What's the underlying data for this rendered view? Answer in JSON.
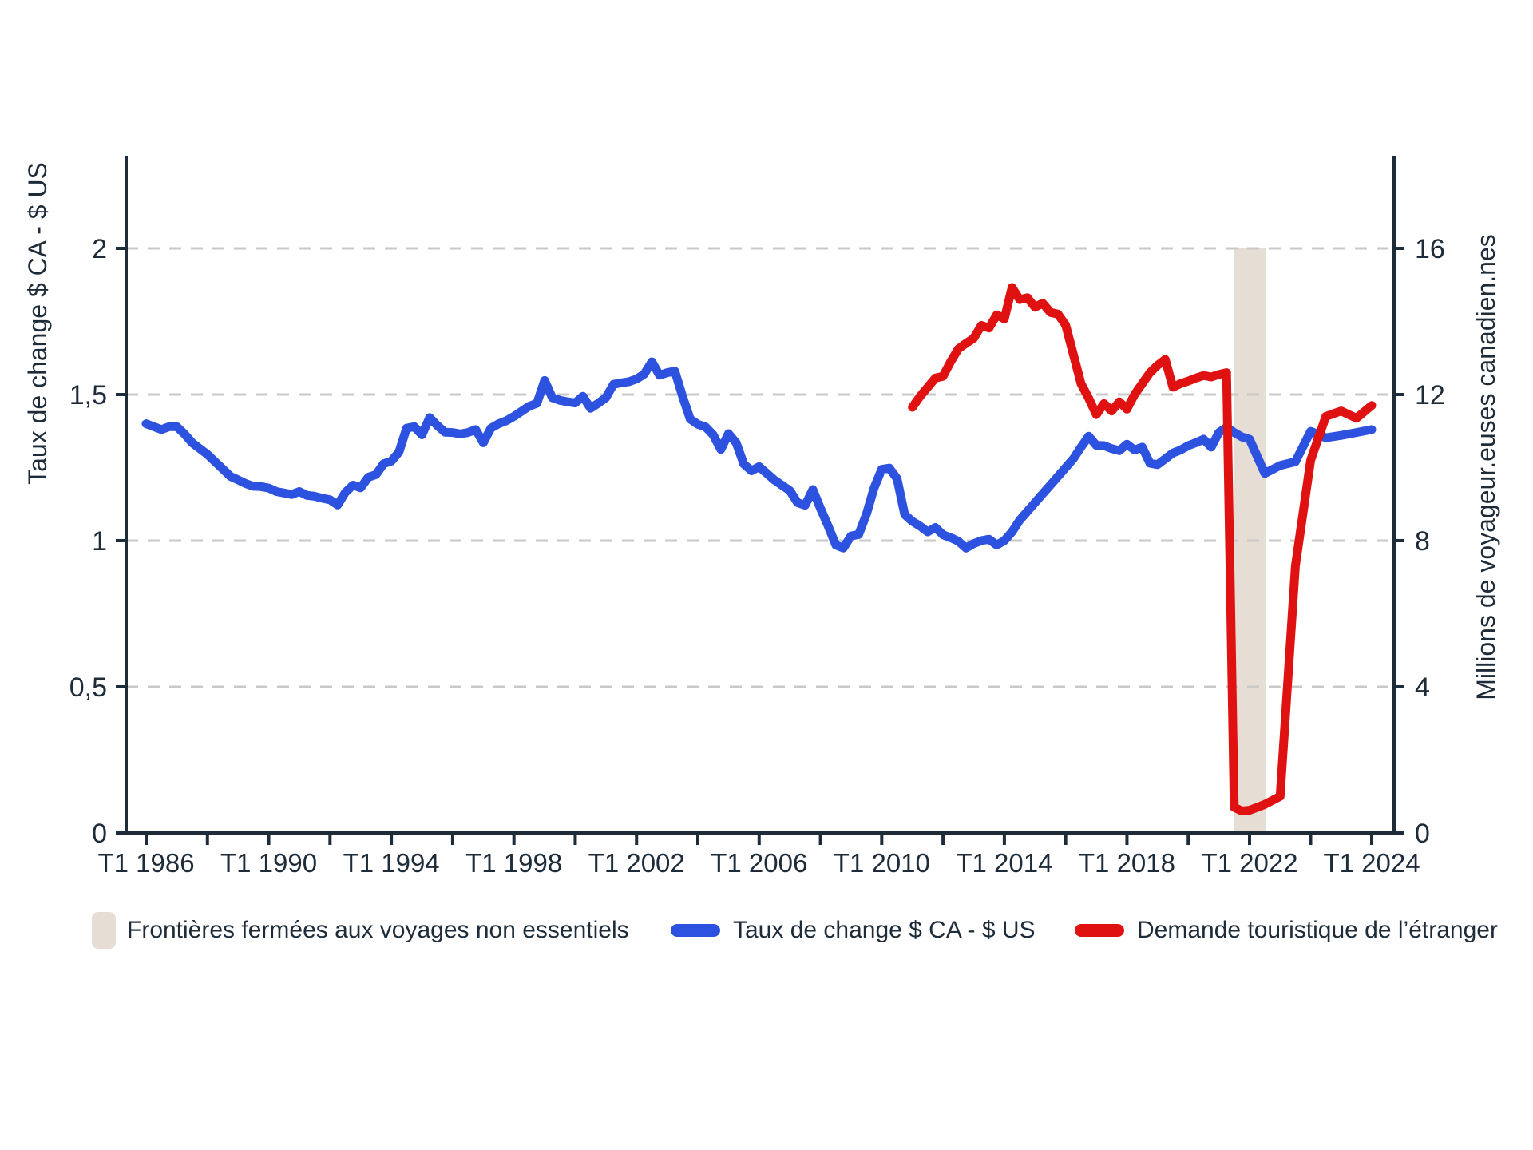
{
  "chart_data": {
    "type": "line",
    "title": "",
    "grid": "dashed-horizontal",
    "background": "#ffffff",
    "colors": {
      "exchange_rate_line": "#2e52e0",
      "tourism_demand_line": "#e01111",
      "closure_band": "#e6ddd5",
      "axis": "#1e2c3a",
      "gridline": "#c9c9c9"
    },
    "left_axis": {
      "label": "Taux de change $ CA - $ US",
      "tick_values": [
        0,
        0.5,
        1,
        1.5,
        2
      ],
      "tick_labels": [
        "0",
        "0,5",
        "1",
        "1,5",
        "2"
      ],
      "range_shown": [
        0,
        2.32
      ]
    },
    "right_axis": {
      "label": "Millions de voyageur.euses canadien.nes",
      "tick_values": [
        0,
        4,
        8,
        12,
        16
      ],
      "tick_labels": [
        "0",
        "4",
        "8",
        "12",
        "16"
      ],
      "range_shown": [
        0,
        18.5
      ]
    },
    "x_axis": {
      "tick_years": [
        1986,
        1988,
        1990,
        1992,
        1994,
        1996,
        1998,
        2000,
        2002,
        2004,
        2006,
        2008,
        2010,
        2012,
        2014,
        2016,
        2018,
        2020,
        2022,
        2023,
        2024
      ],
      "labels": [
        {
          "year": 1986,
          "text": "T1 1986"
        },
        {
          "year": 1990,
          "text": "T1 1990"
        },
        {
          "year": 1994,
          "text": "T1 1994"
        },
        {
          "year": 1998,
          "text": "T1 1998"
        },
        {
          "year": 2002,
          "text": "T1 2002"
        },
        {
          "year": 2006,
          "text": "T1 2006"
        },
        {
          "year": 2010,
          "text": "T1 2010"
        },
        {
          "year": 2014,
          "text": "T1 2014"
        },
        {
          "year": 2018,
          "text": "T1 2018"
        },
        {
          "year": 2022,
          "text": "T1 2022"
        },
        {
          "year": 2024,
          "text": "T1 2024"
        }
      ]
    },
    "band": {
      "name": "Frontières fermées aux voyages non essentiels",
      "x_from_year": 2021.48,
      "x_to_year": 2022.26,
      "top_value_right_axis": 16,
      "bottom_value_right_axis": 0
    },
    "series": [
      {
        "name": "Taux de change $ CA - $ US",
        "axis": "left",
        "color": "#2e52e0",
        "freq": "quarterly",
        "start_year": 1986,
        "start_quarter": "T1",
        "values": [
          1.4,
          1.39,
          1.38,
          1.39,
          1.39,
          1.365,
          1.335,
          1.315,
          1.295,
          1.27,
          1.245,
          1.22,
          1.208,
          1.195,
          1.186,
          1.185,
          1.18,
          1.168,
          1.163,
          1.158,
          1.168,
          1.155,
          1.152,
          1.145,
          1.14,
          1.122,
          1.165,
          1.19,
          1.181,
          1.217,
          1.226,
          1.263,
          1.272,
          1.303,
          1.385,
          1.39,
          1.362,
          1.421,
          1.394,
          1.371,
          1.37,
          1.365,
          1.37,
          1.38,
          1.335,
          1.385,
          1.4,
          1.41,
          1.425,
          1.443,
          1.46,
          1.47,
          1.548,
          1.489,
          1.48,
          1.475,
          1.471,
          1.494,
          1.453,
          1.47,
          1.489,
          1.535,
          1.54,
          1.544,
          1.553,
          1.57,
          1.612,
          1.566,
          1.575,
          1.58,
          1.494,
          1.416,
          1.398,
          1.389,
          1.362,
          1.312,
          1.366,
          1.335,
          1.262,
          1.239,
          1.253,
          1.23,
          1.207,
          1.189,
          1.171,
          1.13,
          1.121,
          1.175,
          1.11,
          1.05,
          0.985,
          0.975,
          1.016,
          1.021,
          1.09,
          1.18,
          1.244,
          1.248,
          1.212,
          1.089,
          1.066,
          1.05,
          1.03,
          1.045,
          1.02,
          1.01,
          0.998,
          0.975,
          0.99,
          1.0,
          1.005,
          0.985,
          1.0,
          1.03,
          1.07,
          1.1,
          1.13,
          1.16,
          1.19,
          1.22,
          1.25,
          1.28,
          1.32,
          1.357,
          1.326,
          1.325,
          1.315,
          1.308,
          1.33,
          1.31,
          1.32,
          1.265,
          1.26,
          1.28,
          1.3,
          1.31,
          1.325,
          1.335,
          1.347,
          1.32,
          1.37,
          1.388,
          1.37,
          1.355,
          1.347,
          1.23,
          1.257,
          1.27,
          1.374,
          1.352,
          1.36,
          1.37,
          1.38
        ]
      },
      {
        "name": "Demande touristique de l’étranger",
        "axis": "right",
        "color": "#e01111",
        "freq": "quarterly",
        "start_year": 2011,
        "start_quarter": "T1",
        "values": [
          11.65,
          11.95,
          12.2,
          12.45,
          12.5,
          12.9,
          13.25,
          13.4,
          13.54,
          13.89,
          13.82,
          14.18,
          14.07,
          14.93,
          14.6,
          14.65,
          14.39,
          14.5,
          14.25,
          14.2,
          13.9,
          13.1,
          12.3,
          11.9,
          11.45,
          11.75,
          11.55,
          11.8,
          11.6,
          12.0,
          12.3,
          12.6,
          12.8,
          12.96,
          12.2,
          12.3,
          12.37,
          12.45,
          12.52,
          12.48,
          12.55,
          12.6,
          0.7,
          0.6,
          0.62,
          0.78,
          1.0,
          7.3,
          10.2,
          11.4,
          11.55,
          11.35,
          11.7
        ]
      }
    ]
  },
  "legend": {
    "items": [
      {
        "swatch": "band-swatch",
        "color": "#e6ddd5",
        "label": "Frontières fermées aux voyages non essentiels"
      },
      {
        "swatch": "blue-line-swatch",
        "color": "#2e52e0",
        "label": "Taux de change $ CA - $ US"
      },
      {
        "swatch": "red-line-swatch",
        "color": "#e01111",
        "label": "Demande touristique de l’étranger"
      }
    ]
  }
}
